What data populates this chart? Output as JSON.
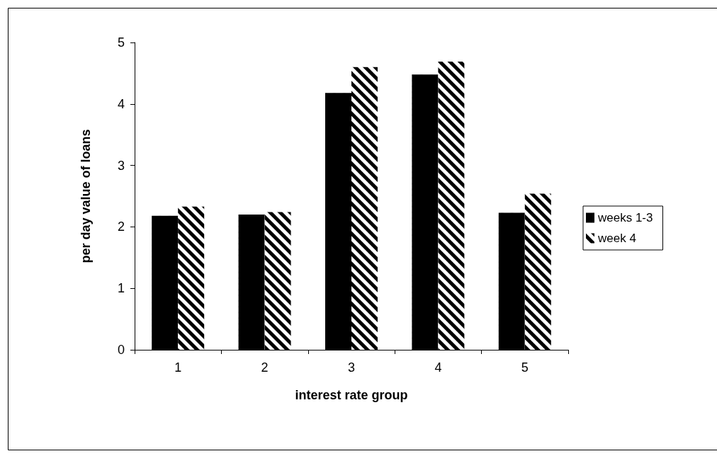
{
  "chart_data": {
    "type": "bar",
    "xlabel": "interest rate group",
    "ylabel": "per day value of loans",
    "categories": [
      "1",
      "2",
      "3",
      "4",
      "5"
    ],
    "series": [
      {
        "name": "weeks 1-3",
        "color": "#000000",
        "values": [
          2.18,
          2.2,
          4.18,
          4.48,
          2.23
        ]
      },
      {
        "name": "week 4",
        "color": "#ffffff",
        "values": [
          2.33,
          2.24,
          4.6,
          4.69,
          2.54
        ]
      }
    ],
    "ylim": [
      0,
      5
    ],
    "yticks": [
      0,
      1,
      2,
      3,
      4,
      5
    ],
    "grid": false,
    "legend": "right"
  }
}
